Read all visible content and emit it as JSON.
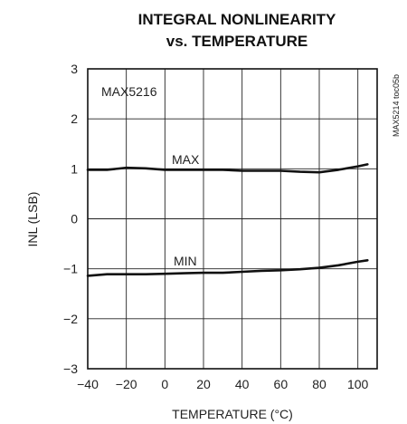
{
  "chart_data": {
    "type": "line",
    "title_line1": "INTEGRAL NONLINEARITY",
    "title_line2": "vs. TEMPERATURE",
    "xlabel": "TEMPERATURE (°C)",
    "ylabel": "INL (LSB)",
    "xlim": [
      -40,
      110
    ],
    "ylim": [
      -3,
      3
    ],
    "xticks": [
      -40,
      -20,
      0,
      20,
      40,
      60,
      80,
      100
    ],
    "yticks": [
      3,
      2,
      1,
      0,
      -1,
      -2,
      -3
    ],
    "grid": true,
    "device_label": "MAX5216",
    "figure_code": "MAX5214 toc05b",
    "series": [
      {
        "name": "MAX",
        "x": [
          -40,
          -30,
          -20,
          -10,
          0,
          10,
          20,
          30,
          40,
          50,
          60,
          70,
          80,
          90,
          100,
          105
        ],
        "values": [
          0.98,
          0.98,
          1.02,
          1.01,
          0.98,
          0.98,
          0.98,
          0.98,
          0.96,
          0.96,
          0.96,
          0.94,
          0.93,
          0.98,
          1.05,
          1.09
        ]
      },
      {
        "name": "MIN",
        "x": [
          -40,
          -30,
          -20,
          -10,
          0,
          10,
          20,
          30,
          40,
          50,
          60,
          70,
          80,
          90,
          100,
          105
        ],
        "values": [
          -1.14,
          -1.11,
          -1.11,
          -1.11,
          -1.1,
          -1.09,
          -1.08,
          -1.08,
          -1.06,
          -1.04,
          -1.03,
          -1.01,
          -0.98,
          -0.93,
          -0.86,
          -0.83
        ]
      }
    ]
  }
}
